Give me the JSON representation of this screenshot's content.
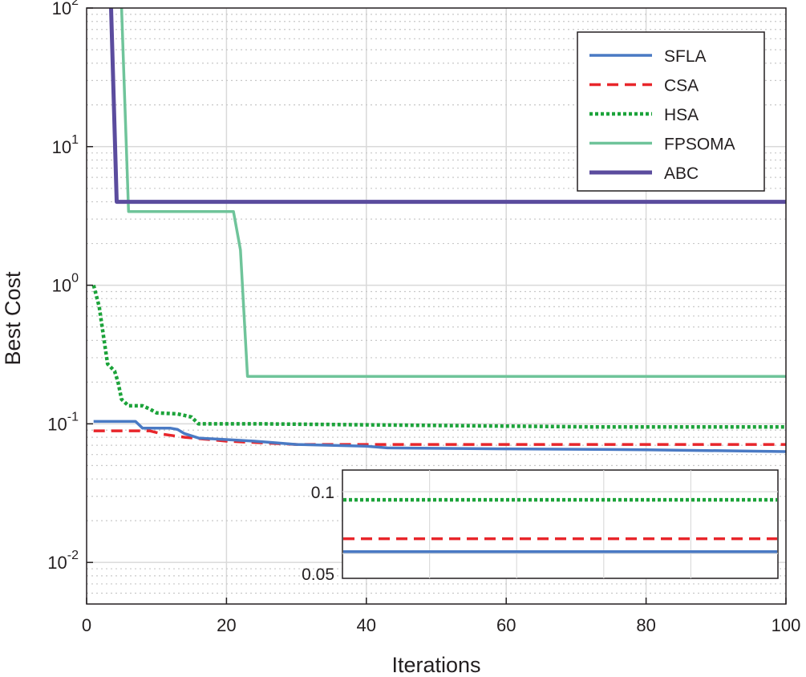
{
  "chart_data": {
    "type": "line",
    "xlabel": "Iterations",
    "ylabel": "Best Cost",
    "yscale": "log",
    "xlim": [
      0,
      100
    ],
    "ylim_exp": [
      -2.3,
      2
    ],
    "x_ticks": [
      0,
      20,
      40,
      60,
      80,
      100
    ],
    "x_tick_labels": [
      "0",
      "20",
      "40",
      "60",
      "80",
      "100"
    ],
    "y_tick_exponents": [
      -2,
      -1,
      0,
      1,
      2
    ],
    "y_tick_base": "10",
    "y_tick_exp_labels": [
      "-2",
      "-1",
      "0",
      "1",
      "2"
    ],
    "grid": true,
    "legend_position": "top-right",
    "series": [
      {
        "name": "SFLA",
        "color": "#4a7ac4",
        "dash": "solid",
        "x": [
          1,
          7,
          8,
          12,
          13,
          14,
          15,
          16,
          20,
          24,
          27,
          30,
          40,
          43,
          60,
          80,
          100
        ],
        "y": [
          0.104,
          0.104,
          0.093,
          0.093,
          0.091,
          0.085,
          0.082,
          0.079,
          0.077,
          0.075,
          0.073,
          0.071,
          0.069,
          0.067,
          0.066,
          0.065,
          0.063
        ]
      },
      {
        "name": "CSA",
        "color": "#e8262b",
        "dash": "dashed",
        "x": [
          1,
          9,
          11,
          14,
          20,
          25,
          30,
          100
        ],
        "y": [
          0.089,
          0.089,
          0.084,
          0.08,
          0.075,
          0.073,
          0.071,
          0.071
        ]
      },
      {
        "name": "HSA",
        "color": "#1ca33a",
        "dash": "dotted",
        "x": [
          1,
          1.8,
          2.5,
          3,
          4,
          4.5,
          5,
          6,
          8,
          9,
          10,
          13,
          15,
          16,
          25,
          72,
          100
        ],
        "y": [
          1.0,
          0.7,
          0.4,
          0.27,
          0.24,
          0.2,
          0.15,
          0.135,
          0.135,
          0.128,
          0.12,
          0.118,
          0.112,
          0.1,
          0.1,
          0.095,
          0.095
        ]
      },
      {
        "name": "FPSOMA",
        "color": "#6fc49a",
        "dash": "solid",
        "x": [
          5,
          6,
          21,
          22,
          23,
          100
        ],
        "y": [
          100,
          3.4,
          3.4,
          1.8,
          0.22,
          0.22
        ]
      },
      {
        "name": "ABC",
        "color": "#5b4c9e",
        "dash": "solid",
        "x": [
          3.5,
          4.3,
          100
        ],
        "y": [
          100,
          4.0,
          4.0
        ]
      }
    ],
    "inset": {
      "type": "line",
      "y_tick_labels": [
        "0.1",
        "0.05"
      ],
      "series_levels": {
        "SFLA": 0.063,
        "CSA": 0.071,
        "HSA": 0.095
      }
    }
  }
}
